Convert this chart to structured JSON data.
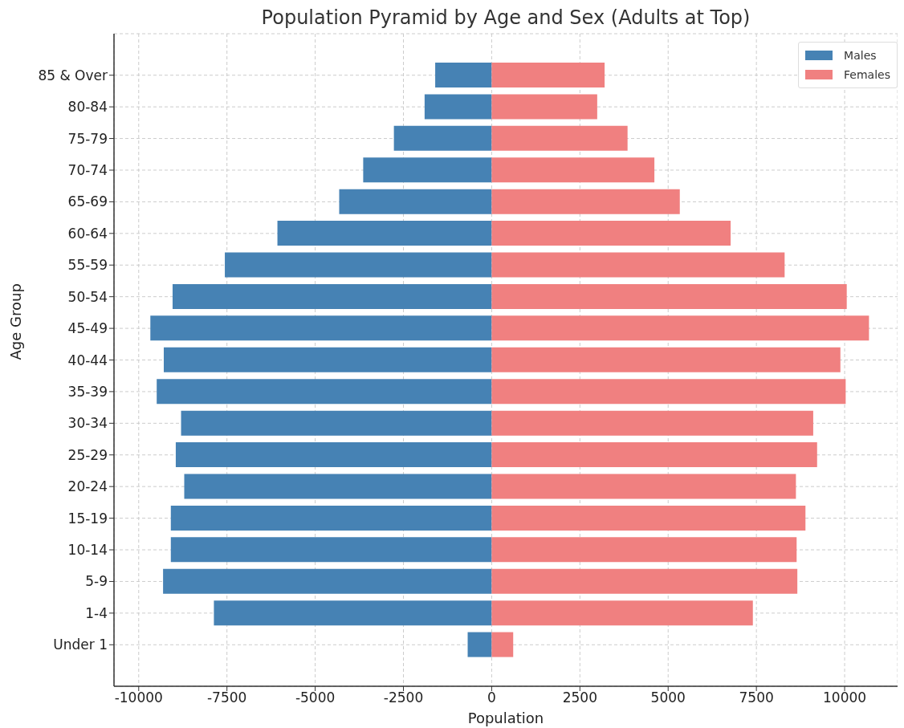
{
  "chart_data": {
    "type": "bar",
    "orientation": "horizontal",
    "title": "Population Pyramid by Age and Sex (Adults at Top)",
    "xlabel": "Population",
    "ylabel": "Age Group",
    "categories": [
      "85 & Over",
      "80-84",
      "75-79",
      "70-74",
      "65-69",
      "60-64",
      "55-59",
      "50-54",
      "45-49",
      "40-44",
      "35-39",
      "30-34",
      "25-29",
      "20-24",
      "15-19",
      "10-14",
      "5-9",
      "1-4",
      "Under 1"
    ],
    "series": [
      {
        "name": "Males",
        "color": "#4682b4",
        "values": [
          -1600,
          -1900,
          -2770,
          -3640,
          -4320,
          -6070,
          -7560,
          -9040,
          -9670,
          -9290,
          -9490,
          -8800,
          -8950,
          -8710,
          -9090,
          -9090,
          -9310,
          -7870,
          -680
        ]
      },
      {
        "name": "Females",
        "color": "#f08080",
        "values": [
          3200,
          2990,
          3850,
          4610,
          5330,
          6770,
          8300,
          10060,
          10690,
          9880,
          10030,
          9110,
          9220,
          8620,
          8890,
          8640,
          8660,
          7400,
          610
        ]
      }
    ],
    "xlim": [
      -10700,
      11500
    ],
    "xticks": [
      -10000,
      -7500,
      -5000,
      -2500,
      0,
      2500,
      5000,
      7500,
      10000
    ],
    "stacked": true,
    "grid": true,
    "legend": "top right"
  }
}
